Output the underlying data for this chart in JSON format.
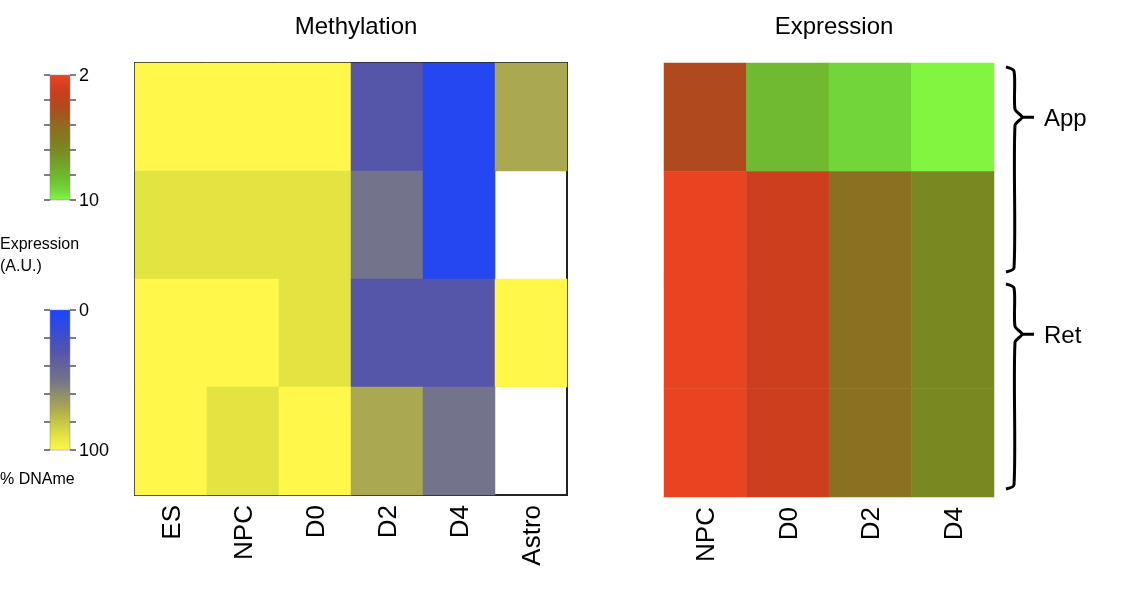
{
  "chart_data": [
    {
      "type": "heatmap",
      "title": "Methylation",
      "clabel": "% DNAme",
      "categories": [
        "ES",
        "NPC",
        "D0",
        "D2",
        "D4",
        "Astro"
      ],
      "y_categories": [
        null,
        null,
        null,
        null
      ],
      "cells": [
        [
          100,
          100,
          100,
          30,
          5,
          70
        ],
        [
          90,
          90,
          90,
          50,
          5,
          null
        ],
        [
          100,
          100,
          90,
          30,
          30,
          100
        ],
        [
          100,
          90,
          100,
          70,
          50,
          null
        ]
      ],
      "clim": [
        100,
        0
      ],
      "cticks": [
        0,
        {
          "value": 20,
          "label": null
        },
        {
          "value": 40,
          "label": null
        },
        {
          "value": 60,
          "label": null
        },
        {
          "value": 80,
          "label": null
        },
        100
      ]
    },
    {
      "type": "heatmap",
      "title": "Expression",
      "clabel": "Expression\n(A.U.)",
      "categories": [
        "NPC",
        "D0",
        "D2",
        "D4"
      ],
      "y_categories": [
        "App",
        null,
        "Ret",
        null
      ],
      "cells": [
        [
          4,
          8.5,
          9.3,
          10
        ],
        [
          2,
          3,
          5.5,
          6.8
        ],
        [
          2,
          3,
          5.5,
          6.8
        ],
        [
          2,
          3,
          5.5,
          6.8
        ]
      ],
      "clim": [
        10,
        2
      ],
      "cticks": [
        2,
        {
          "value": 3.6,
          "label": null
        },
        {
          "value": 5.2,
          "label": null
        },
        {
          "value": 6.8,
          "label": null
        },
        {
          "value": 8.4,
          "label": null
        },
        10
      ]
    }
  ]
}
